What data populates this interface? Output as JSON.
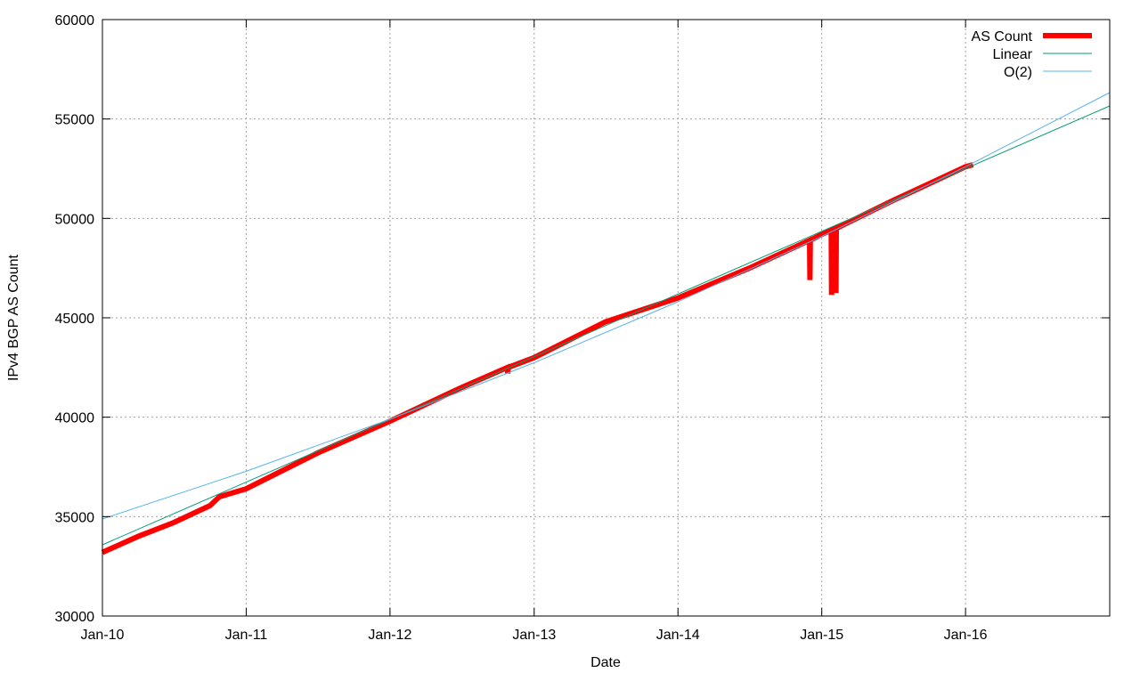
{
  "chart_data": {
    "type": "line",
    "title": "",
    "xlabel": "Date",
    "ylabel": "IPv4 BGP AS Count",
    "xlim": [
      "2010-01-01",
      "2017-01-01"
    ],
    "ylim": [
      30000,
      60000
    ],
    "yticks": [
      30000,
      35000,
      40000,
      45000,
      50000,
      55000,
      60000
    ],
    "xticks": [
      {
        "date": "2010-01-01",
        "label": "Jan-10"
      },
      {
        "date": "2011-01-01",
        "label": "Jan-11"
      },
      {
        "date": "2012-01-01",
        "label": "Jan-12"
      },
      {
        "date": "2013-01-01",
        "label": "Jan-13"
      },
      {
        "date": "2014-01-01",
        "label": "Jan-14"
      },
      {
        "date": "2015-01-01",
        "label": "Jan-15"
      },
      {
        "date": "2016-01-01",
        "label": "Jan-16"
      }
    ],
    "grid": true,
    "legend": "top-right",
    "series": [
      {
        "name": "AS Count",
        "color": "#ff0000",
        "points": [
          [
            "2010-01-01",
            33200
          ],
          [
            "2010-04-01",
            34000
          ],
          [
            "2010-07-01",
            34700
          ],
          [
            "2010-10-01",
            35550
          ],
          [
            "2010-10-25",
            36000
          ],
          [
            "2011-01-01",
            36400
          ],
          [
            "2011-07-01",
            38200
          ],
          [
            "2012-01-01",
            39800
          ],
          [
            "2012-07-01",
            41500
          ],
          [
            "2012-10-25",
            42500
          ],
          [
            "2012-10-26",
            42200
          ],
          [
            "2012-10-27",
            42500
          ],
          [
            "2013-01-01",
            43000
          ],
          [
            "2013-07-01",
            44800
          ],
          [
            "2014-01-01",
            46000
          ],
          [
            "2014-07-01",
            47500
          ],
          [
            "2014-12-01",
            48900
          ],
          [
            "2014-12-02",
            46900
          ],
          [
            "2014-12-03",
            48900
          ],
          [
            "2015-01-01",
            49200
          ],
          [
            "2015-01-25",
            49400
          ],
          [
            "2015-01-26",
            46150
          ],
          [
            "2015-01-27",
            49400
          ],
          [
            "2015-02-05",
            49500
          ],
          [
            "2015-02-06",
            46250
          ],
          [
            "2015-02-07",
            49500
          ],
          [
            "2015-07-01",
            50900
          ],
          [
            "2016-01-01",
            52600
          ],
          [
            "2016-01-20",
            52700
          ]
        ]
      },
      {
        "name": "Linear",
        "color": "#009e73",
        "points": [
          [
            "2010-01-01",
            33580
          ],
          [
            "2011-01-01",
            36734
          ],
          [
            "2012-01-01",
            39888
          ],
          [
            "2013-01-01",
            43042
          ],
          [
            "2014-01-01",
            46196
          ],
          [
            "2015-01-01",
            49350
          ],
          [
            "2016-01-01",
            52504
          ],
          [
            "2017-01-01",
            55658
          ]
        ]
      },
      {
        "name": "O(2)",
        "color": "#56b4e9",
        "points": [
          [
            "2010-01-01",
            34880
          ],
          [
            "2011-01-01",
            37279
          ],
          [
            "2012-01-01",
            39900
          ],
          [
            "2013-01-01",
            42742
          ],
          [
            "2014-01-01",
            45806
          ],
          [
            "2015-01-01",
            49092
          ],
          [
            "2016-01-01",
            52600
          ],
          [
            "2017-01-01",
            56330
          ]
        ]
      }
    ]
  }
}
